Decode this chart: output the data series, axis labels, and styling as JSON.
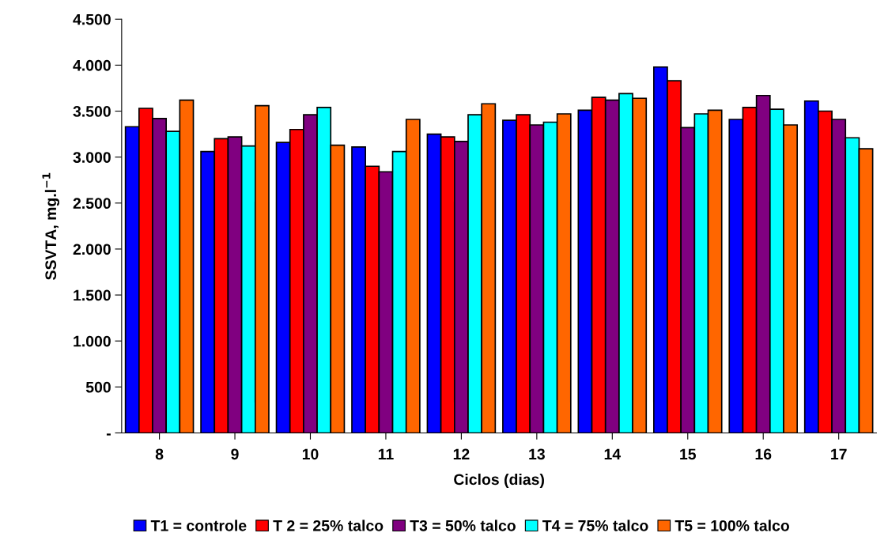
{
  "chart_data": {
    "type": "bar",
    "xlabel": "Ciclos (dias)",
    "ylabel": "SSVTA, mg.l$^{−1}$",
    "categories": [
      "8",
      "9",
      "10",
      "11",
      "12",
      "13",
      "14",
      "15",
      "16",
      "17"
    ],
    "series": [
      {
        "name": "T1 = controle",
        "color": "#0000ff",
        "values": [
          3330,
          3060,
          3160,
          3110,
          3250,
          3400,
          3510,
          3980,
          3410,
          3610
        ]
      },
      {
        "name": "T 2 = 25% talco",
        "color": "#ff0000",
        "values": [
          3530,
          3200,
          3300,
          2900,
          3220,
          3460,
          3650,
          3830,
          3540,
          3500
        ]
      },
      {
        "name": "T3 = 50% talco",
        "color": "#800080",
        "values": [
          3420,
          3220,
          3460,
          2840,
          3170,
          3350,
          3620,
          3320,
          3670,
          3410
        ]
      },
      {
        "name": "T4 = 75% talco",
        "color": "#00ffff",
        "values": [
          3280,
          3120,
          3540,
          3060,
          3460,
          3380,
          3690,
          3470,
          3520,
          3210
        ]
      },
      {
        "name": "T5 = 100% talco",
        "color": "#ff6600",
        "values": [
          3620,
          3560,
          3130,
          3410,
          3580,
          3470,
          3640,
          3510,
          3350,
          3090
        ]
      }
    ],
    "ylim": [
      0,
      4500
    ],
    "yticks": [
      {
        "value": 0,
        "label": "-"
      },
      {
        "value": 500,
        "label": "500"
      },
      {
        "value": 1000,
        "label": "1.000"
      },
      {
        "value": 1500,
        "label": "1.500"
      },
      {
        "value": 2000,
        "label": "2.000"
      },
      {
        "value": 2500,
        "label": "2.500"
      },
      {
        "value": 3000,
        "label": "3.000"
      },
      {
        "value": 3500,
        "label": "3.500"
      },
      {
        "value": 4000,
        "label": "4.000"
      },
      {
        "value": 4500,
        "label": "4.500"
      }
    ],
    "grid": false,
    "legend": "bottom"
  }
}
